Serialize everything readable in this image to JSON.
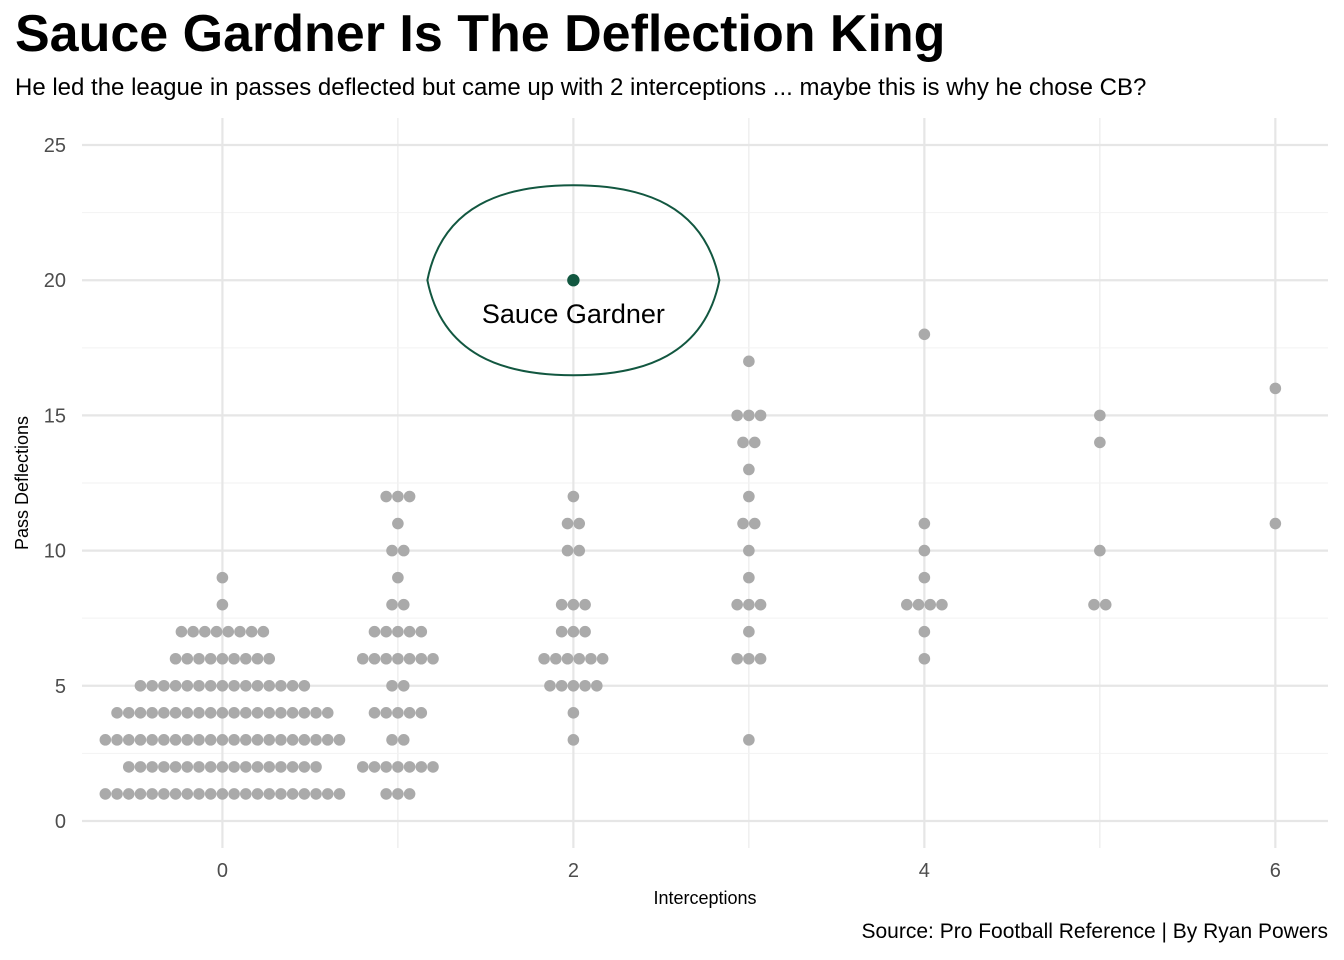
{
  "chart_data": {
    "type": "scatter",
    "title": "Sauce Gardner Is The Deflection King",
    "subtitle": "He led the league in passes deflected but came up with 2 interceptions ... maybe this is why he chose CB?",
    "caption": "Source: Pro Football Reference | By Ryan Powers",
    "xlabel": "Interceptions",
    "ylabel": "Pass Deflections",
    "xlim": [
      -0.8,
      6.3
    ],
    "ylim": [
      -1.0,
      26.0
    ],
    "xticks": [
      0,
      2,
      4,
      6
    ],
    "yticks": [
      0,
      5,
      10,
      15,
      20,
      25
    ],
    "grid": true,
    "point_color": "#AAAAAA",
    "highlight_color": "#125740",
    "groups": [
      {
        "x": 0,
        "rows": [
          [
            1,
            21
          ],
          [
            2,
            17
          ],
          [
            3,
            21
          ],
          [
            4,
            19
          ],
          [
            5,
            15
          ],
          [
            6,
            9
          ],
          [
            7,
            8
          ],
          [
            8,
            1
          ],
          [
            9,
            1
          ]
        ]
      },
      {
        "x": 1,
        "rows": [
          [
            1,
            3
          ],
          [
            2,
            7
          ],
          [
            3,
            2
          ],
          [
            4,
            5
          ],
          [
            5,
            2
          ],
          [
            6,
            7
          ],
          [
            7,
            5
          ],
          [
            8,
            2
          ],
          [
            9,
            1
          ],
          [
            10,
            2
          ],
          [
            11,
            1
          ],
          [
            12,
            3
          ]
        ]
      },
      {
        "x": 2,
        "rows": [
          [
            3,
            1
          ],
          [
            4,
            1
          ],
          [
            5,
            5
          ],
          [
            6,
            6
          ],
          [
            7,
            3
          ],
          [
            8,
            3
          ],
          [
            10,
            2
          ],
          [
            11,
            2
          ],
          [
            12,
            1
          ]
        ]
      },
      {
        "x": 3,
        "rows": [
          [
            3,
            1
          ],
          [
            6,
            3
          ],
          [
            7,
            1
          ],
          [
            8,
            3
          ],
          [
            9,
            1
          ],
          [
            10,
            1
          ],
          [
            11,
            2
          ],
          [
            12,
            1
          ],
          [
            13,
            1
          ],
          [
            14,
            2
          ],
          [
            15,
            3
          ],
          [
            17,
            1
          ]
        ]
      },
      {
        "x": 4,
        "rows": [
          [
            6,
            1
          ],
          [
            7,
            1
          ],
          [
            8,
            4
          ],
          [
            9,
            1
          ],
          [
            10,
            1
          ],
          [
            11,
            1
          ],
          [
            18,
            1
          ]
        ]
      },
      {
        "x": 5,
        "rows": [
          [
            8,
            2
          ],
          [
            10,
            1
          ],
          [
            14,
            1
          ],
          [
            15,
            1
          ]
        ]
      },
      {
        "x": 6,
        "rows": [
          [
            11,
            1
          ],
          [
            16,
            1
          ]
        ]
      }
    ],
    "highlight": {
      "label": "Sauce Gardner",
      "x": 2,
      "y": 20
    }
  }
}
